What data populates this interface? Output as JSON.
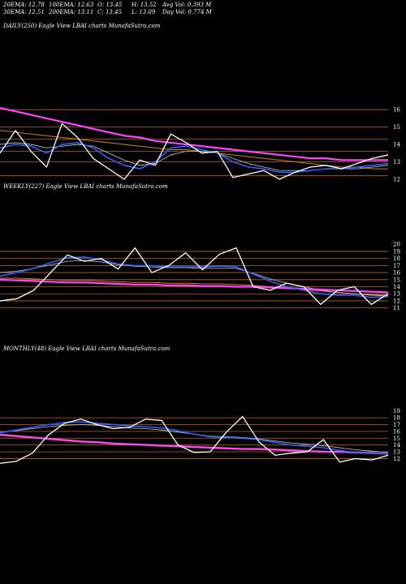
{
  "header": {
    "ema20": "20EMA: 12.78",
    "ema30": "30EMA: 12.51",
    "ema100": "100EMA: 12.63",
    "ema200": "200EMA: 13.11",
    "open": "O: 13.45",
    "close": "C: 13.45",
    "high": "H: 13.52",
    "low": "L: 13.09",
    "avgvol": "Avg Vol: 0.393  M",
    "dayvol": "Day Vol: 0.774  M"
  },
  "colors": {
    "price": "#ffffff",
    "ma_fast": "#3060ff",
    "ma_long": "#ff44ff",
    "grid": "#c0641e",
    "ma_thin": "#cccccc",
    "ma_orange": "#d08020"
  },
  "chart_data": [
    {
      "type": "line",
      "title": "DAILY(250) Eagle  View  LBAI charts MunafaSutra.com",
      "ylim": [
        11.3,
        16.8
      ],
      "yticks": [
        12,
        13,
        14,
        15,
        16
      ],
      "gridlines": [
        12.2,
        13.0,
        13.6,
        14.3,
        15.0,
        16.0
      ],
      "x": [
        0,
        10,
        20,
        30,
        40,
        50,
        60,
        70,
        80,
        90,
        100,
        110,
        120,
        130,
        140,
        150,
        160,
        170,
        180,
        190,
        200,
        210,
        220,
        230,
        240,
        250
      ],
      "series": [
        {
          "role": "price",
          "values": [
            13.5,
            14.8,
            13.6,
            12.7,
            15.2,
            14.4,
            13.2,
            12.6,
            12.0,
            13.1,
            12.8,
            14.6,
            14.1,
            13.5,
            13.6,
            12.1,
            12.3,
            12.5,
            12.0,
            12.4,
            12.7,
            12.8,
            12.6,
            12.9,
            13.2,
            13.4
          ]
        },
        {
          "role": "ma20",
          "values": [
            13.8,
            14.0,
            13.9,
            13.5,
            14.0,
            14.1,
            13.8,
            13.2,
            12.8,
            12.6,
            13.0,
            13.8,
            13.9,
            13.7,
            13.5,
            13.0,
            12.7,
            12.6,
            12.4,
            12.4,
            12.5,
            12.6,
            12.6,
            12.7,
            12.8,
            12.9
          ]
        },
        {
          "role": "ma30",
          "values": [
            14.0,
            14.1,
            14.0,
            13.8,
            13.9,
            14.0,
            13.9,
            13.5,
            13.1,
            12.8,
            12.9,
            13.4,
            13.6,
            13.6,
            13.5,
            13.2,
            12.9,
            12.7,
            12.5,
            12.5,
            12.5,
            12.6,
            12.6,
            12.6,
            12.7,
            12.8
          ]
        },
        {
          "role": "ma100",
          "values": [
            14.8,
            14.7,
            14.6,
            14.5,
            14.4,
            14.3,
            14.2,
            14.1,
            14.0,
            13.9,
            13.8,
            13.7,
            13.7,
            13.6,
            13.5,
            13.4,
            13.3,
            13.2,
            13.1,
            13.0,
            12.9,
            12.8,
            12.7,
            12.7,
            12.6,
            12.6
          ]
        },
        {
          "role": "ma200",
          "values": [
            16.1,
            15.9,
            15.7,
            15.5,
            15.3,
            15.1,
            14.9,
            14.7,
            14.5,
            14.4,
            14.2,
            14.1,
            14.0,
            13.9,
            13.8,
            13.7,
            13.6,
            13.5,
            13.4,
            13.3,
            13.2,
            13.2,
            13.1,
            13.1,
            13.1,
            13.1
          ]
        }
      ]
    },
    {
      "type": "line",
      "title": "WEEKLY(227) Eagle  View  LBAI charts MunafaSutra.com",
      "ylim": [
        10.5,
        20.6
      ],
      "yticks": [
        11,
        12,
        13,
        14,
        15,
        16,
        17,
        18,
        19,
        20
      ],
      "gridlines": [
        11,
        12,
        13,
        14,
        15,
        16,
        17,
        18,
        19
      ],
      "x": [
        0,
        10,
        20,
        30,
        40,
        50,
        60,
        70,
        80,
        90,
        100,
        110,
        120,
        130,
        140,
        150,
        160,
        170,
        180,
        190,
        200,
        210,
        220,
        230
      ],
      "series": [
        {
          "role": "price",
          "values": [
            12.0,
            12.3,
            13.5,
            16.0,
            18.5,
            17.6,
            18.0,
            16.5,
            19.5,
            16.0,
            17.0,
            18.8,
            16.4,
            18.6,
            19.5,
            14.0,
            13.5,
            14.5,
            14.0,
            11.5,
            13.5,
            14.0,
            11.5,
            13.0
          ]
        },
        {
          "role": "ma20",
          "values": [
            15.5,
            16.0,
            16.6,
            17.4,
            18.1,
            18.2,
            17.8,
            17.2,
            17.0,
            17.0,
            16.8,
            16.8,
            16.8,
            16.9,
            16.8,
            15.8,
            14.8,
            14.0,
            13.5,
            13.0,
            12.8,
            12.8,
            12.5,
            12.6
          ]
        },
        {
          "role": "ma30",
          "values": [
            16.0,
            16.2,
            16.6,
            17.1,
            17.6,
            17.7,
            17.5,
            17.1,
            16.9,
            16.8,
            16.7,
            16.7,
            16.6,
            16.6,
            16.6,
            15.9,
            15.1,
            14.5,
            14.0,
            13.5,
            13.2,
            13.0,
            12.8,
            12.7
          ]
        },
        {
          "role": "ma100",
          "values": [
            15.2,
            15.2,
            15.1,
            15.0,
            14.9,
            14.9,
            14.8,
            14.7,
            14.6,
            14.6,
            14.5,
            14.5,
            14.4,
            14.4,
            14.3,
            14.2,
            14.0,
            13.8,
            13.6,
            13.4,
            13.2,
            13.0,
            12.9,
            12.8
          ]
        },
        {
          "role": "ma200",
          "values": [
            15.0,
            14.9,
            14.8,
            14.7,
            14.6,
            14.6,
            14.5,
            14.4,
            14.3,
            14.3,
            14.2,
            14.2,
            14.1,
            14.1,
            14.0,
            14.0,
            13.9,
            13.8,
            13.7,
            13.6,
            13.5,
            13.4,
            13.3,
            13.2
          ]
        }
      ]
    },
    {
      "type": "line",
      "title": "MONTHLY(48) Eagle  View  LBAI charts MunafaSutra.com",
      "ylim": [
        10.5,
        19.8
      ],
      "yticks": [
        12,
        13,
        14,
        15,
        16,
        17,
        18,
        19
      ],
      "gridlines": [
        12,
        13,
        14,
        15,
        16,
        17,
        18
      ],
      "x": [
        0,
        10,
        20,
        30,
        40,
        50,
        60,
        70,
        80,
        90,
        100,
        110,
        120,
        130,
        140,
        150,
        160,
        170,
        180,
        190,
        200,
        210,
        220,
        230,
        240
      ],
      "series": [
        {
          "role": "price",
          "values": [
            11.3,
            11.6,
            12.8,
            15.5,
            17.2,
            17.8,
            17.0,
            16.4,
            16.6,
            17.8,
            17.6,
            14.0,
            12.9,
            13.0,
            15.9,
            18.2,
            14.5,
            12.5,
            12.8,
            13.0,
            14.8,
            11.5,
            12.0,
            11.8,
            12.5
          ]
        },
        {
          "role": "ma20",
          "values": [
            15.8,
            16.2,
            16.6,
            17.0,
            17.3,
            17.4,
            17.2,
            17.0,
            16.8,
            16.7,
            16.5,
            16.1,
            15.6,
            15.2,
            15.1,
            15.0,
            14.8,
            14.4,
            14.0,
            13.8,
            13.6,
            13.2,
            12.9,
            12.8,
            12.7
          ]
        },
        {
          "role": "ma30",
          "values": [
            15.9,
            16.1,
            16.4,
            16.7,
            16.9,
            17.0,
            16.9,
            16.7,
            16.5,
            16.4,
            16.2,
            15.9,
            15.6,
            15.3,
            15.2,
            15.1,
            14.9,
            14.6,
            14.3,
            14.1,
            13.9,
            13.6,
            13.3,
            13.1,
            12.9
          ]
        },
        {
          "role": "ma100",
          "values": [
            15.6,
            15.4,
            15.2,
            15.0,
            14.8,
            14.6,
            14.5,
            14.3,
            14.2,
            14.1,
            14.0,
            13.9,
            13.8,
            13.7,
            13.6,
            13.5,
            13.5,
            13.4,
            13.3,
            13.2,
            13.1,
            13.0,
            12.9,
            12.8,
            12.7
          ]
        },
        {
          "role": "ma200",
          "values": [
            15.5,
            15.3,
            15.1,
            14.9,
            14.7,
            14.5,
            14.4,
            14.2,
            14.1,
            14.0,
            13.9,
            13.8,
            13.7,
            13.6,
            13.5,
            13.4,
            13.4,
            13.3,
            13.2,
            13.1,
            13.0,
            13.0,
            12.9,
            12.8,
            12.7
          ]
        }
      ]
    }
  ]
}
